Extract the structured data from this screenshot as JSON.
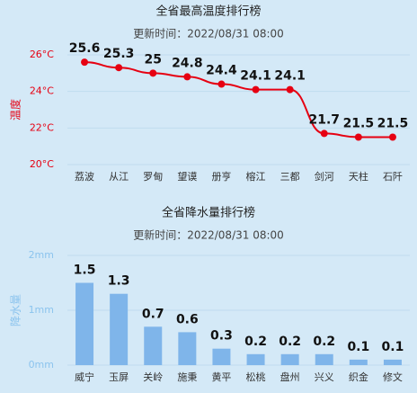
{
  "chart_data": [
    {
      "type": "line",
      "title": "全省最高温度排行榜",
      "subtitle": "更新时间：2022/08/31 08:00",
      "ylabel": "温度",
      "categories": [
        "荔波",
        "从江",
        "罗甸",
        "望谟",
        "册亨",
        "榕江",
        "三都",
        "剑河",
        "天柱",
        "石阡"
      ],
      "values": [
        25.6,
        25.3,
        25,
        24.8,
        24.4,
        24.1,
        24.1,
        21.7,
        21.5,
        21.5
      ],
      "color": "#e60012",
      "axis_color": "#e60012",
      "ylim": [
        20,
        26
      ],
      "yticks": [
        {
          "value": 20,
          "label": "20°C"
        },
        {
          "value": 22,
          "label": "22°C"
        },
        {
          "value": 24,
          "label": "24°C"
        },
        {
          "value": 26,
          "label": "26°C"
        }
      ],
      "grid": true
    },
    {
      "type": "bar",
      "title": "全省降水量排行榜",
      "subtitle": "更新时间：2022/08/31 08:00",
      "ylabel": "降水量",
      "categories": [
        "威宁",
        "玉屏",
        "关岭",
        "施秉",
        "黄平",
        "松桃",
        "盘州",
        "兴义",
        "织金",
        "修文"
      ],
      "values": [
        1.5,
        1.3,
        0.7,
        0.6,
        0.3,
        0.2,
        0.2,
        0.2,
        0.1,
        0.1
      ],
      "color": "#7fb5ea",
      "axis_color": "#8cc4ee",
      "ylim": [
        0,
        2
      ],
      "yticks": [
        {
          "value": 0,
          "label": "0mm"
        },
        {
          "value": 1,
          "label": "1mm"
        },
        {
          "value": 2,
          "label": "2mm"
        }
      ],
      "grid": true
    }
  ]
}
